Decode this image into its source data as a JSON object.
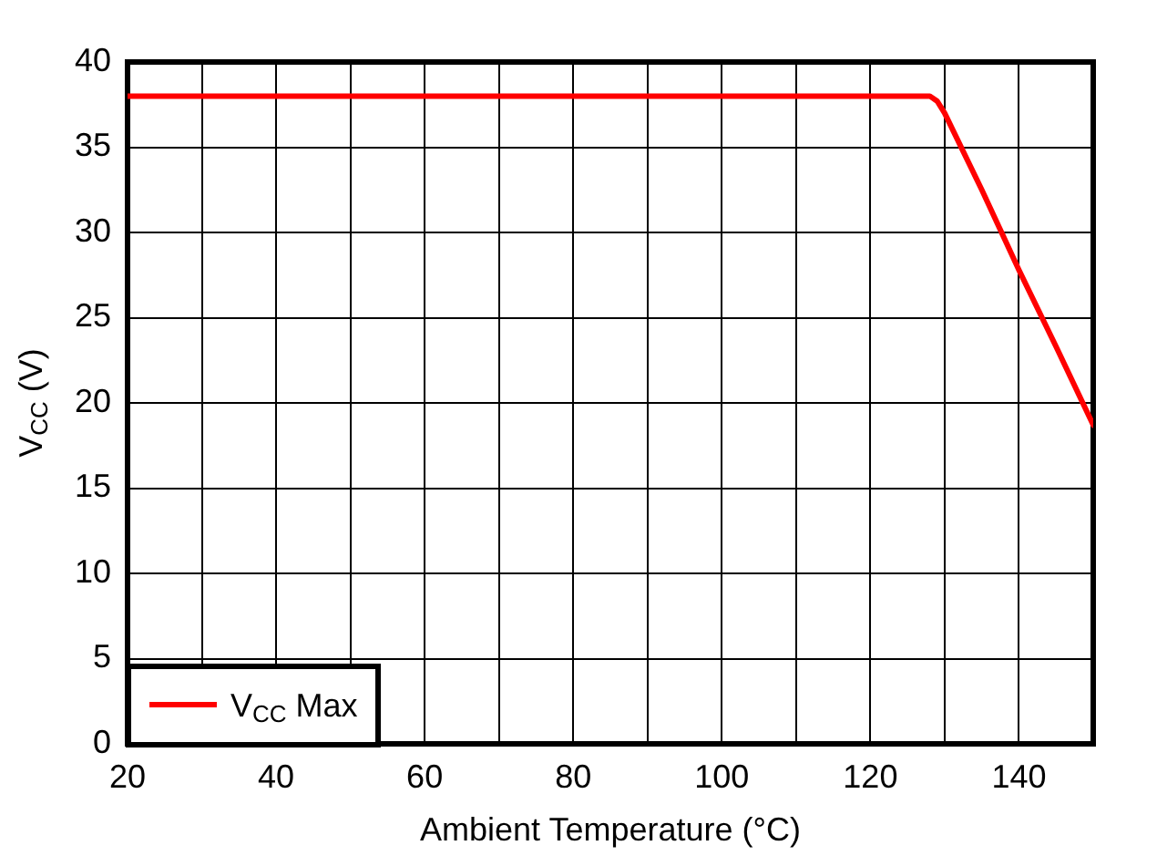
{
  "chart_data": {
    "type": "line",
    "xlabel": "Ambient Temperature (°C)",
    "ylabel": "V$_{CC}$ (V)",
    "x": [
      20,
      128,
      129,
      130,
      135,
      140,
      145,
      150
    ],
    "series": [
      {
        "name": "V$_{CC}$ Max",
        "color": "#ff0000",
        "values": [
          38,
          38,
          37.7,
          37,
          32.5,
          27.8,
          23.3,
          18.7
        ]
      }
    ],
    "xlim": [
      20,
      150
    ],
    "ylim": [
      0,
      40
    ],
    "xticks": [
      20,
      {
        "value": 30,
        "label": null
      },
      40,
      {
        "value": 50,
        "label": null
      },
      60,
      {
        "value": 70,
        "label": null
      },
      80,
      {
        "value": 90,
        "label": null
      },
      100,
      {
        "value": 110,
        "label": null
      },
      120,
      {
        "value": 130,
        "label": null
      },
      140
    ],
    "yticks": [
      0,
      5,
      10,
      15,
      20,
      25,
      30,
      35,
      40
    ],
    "grid": true,
    "legend": "bottom left",
    "marker": "none",
    "line_style": "solid"
  }
}
